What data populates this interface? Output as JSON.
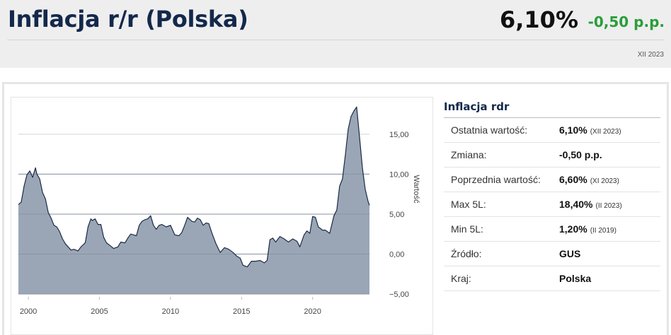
{
  "header": {
    "title": "Inflacja r/r (Polska)",
    "value": "6,10%",
    "change": "-0,50 p.p.",
    "date": "XII 2023"
  },
  "info": {
    "title": "Inflacja rdr",
    "rows": [
      {
        "label": "Ostatnia wartość:",
        "value": "6,10%",
        "sub": "(XII 2023)"
      },
      {
        "label": "Zmiana:",
        "value": "-0,50 p.p.",
        "sub": ""
      },
      {
        "label": "Poprzednia wartość:",
        "value": "6,60%",
        "sub": "(XI 2023)"
      },
      {
        "label": "Max 5L:",
        "value": "18,40%",
        "sub": "(II 2023)"
      },
      {
        "label": "Min 5L:",
        "value": "1,20%",
        "sub": "(II 2019)"
      },
      {
        "label": "Źródło:",
        "value": "GUS",
        "sub": ""
      },
      {
        "label": "Kraj:",
        "value": "Polska",
        "sub": ""
      }
    ]
  },
  "colors": {
    "area_fill": "#9aa6b6",
    "line": "#1b2a45",
    "positive_change": "#2a9d3a",
    "title": "#13284b"
  },
  "chart_data": {
    "type": "area",
    "ylabel": "Wartość",
    "xlim": [
      1999.3,
      2024.0
    ],
    "ylim": [
      -5,
      19.5
    ],
    "grid": true,
    "y_ticks": [
      15,
      10,
      5,
      0,
      -5
    ],
    "y_tick_labels": [
      "15,00",
      "10,00",
      "5,00",
      "0,00",
      "−5,00"
    ],
    "x_ticks": [
      2000,
      2005,
      2010,
      2015,
      2020
    ],
    "x_tick_labels": [
      "2000",
      "2005",
      "2010",
      "2015",
      "2020"
    ],
    "series": [
      {
        "x": [
          1999.3,
          1999.5,
          1999.7,
          1999.9,
          2000.1,
          2000.3,
          2000.5,
          2000.6,
          2000.8,
          2001.0,
          2001.2,
          2001.4,
          2001.6,
          2001.8,
          2002.0,
          2002.2,
          2002.4,
          2002.6,
          2002.8,
          2003.0,
          2003.2,
          2003.5,
          2003.7,
          2004.0,
          2004.2,
          2004.4,
          2004.5,
          2004.7,
          2004.9,
          2005.1,
          2005.3,
          2005.5,
          2005.8,
          2006.0,
          2006.3,
          2006.5,
          2006.8,
          2007.0,
          2007.2,
          2007.4,
          2007.6,
          2007.8,
          2008.0,
          2008.2,
          2008.4,
          2008.6,
          2008.8,
          2009.0,
          2009.2,
          2009.4,
          2009.7,
          2010.0,
          2010.3,
          2010.6,
          2010.8,
          2011.0,
          2011.2,
          2011.5,
          2011.7,
          2011.9,
          2012.1,
          2012.3,
          2012.5,
          2012.7,
          2012.9,
          2013.2,
          2013.5,
          2013.8,
          2014.1,
          2014.4,
          2014.7,
          2014.9,
          2015.1,
          2015.4,
          2015.7,
          2016.0,
          2016.3,
          2016.6,
          2016.8,
          2017.0,
          2017.2,
          2017.4,
          2017.7,
          2018.0,
          2018.3,
          2018.6,
          2018.9,
          2019.1,
          2019.4,
          2019.6,
          2019.8,
          2020.0,
          2020.2,
          2020.4,
          2020.7,
          2020.9,
          2021.2,
          2021.5,
          2021.7,
          2021.9,
          2022.1,
          2022.3,
          2022.5,
          2022.7,
          2022.9,
          2023.1,
          2023.3,
          2023.5,
          2023.7,
          2023.9,
          2024.0
        ],
        "y": [
          6.2,
          6.5,
          8.5,
          9.9,
          10.4,
          9.6,
          10.8,
          10.0,
          9.4,
          7.7,
          6.9,
          5.2,
          4.5,
          3.6,
          3.4,
          2.8,
          1.9,
          1.3,
          0.9,
          0.5,
          0.6,
          0.4,
          0.9,
          1.4,
          3.4,
          4.4,
          4.2,
          4.4,
          3.7,
          3.7,
          2.1,
          1.4,
          1.0,
          0.7,
          0.9,
          1.5,
          1.4,
          2.0,
          2.5,
          2.4,
          2.3,
          3.6,
          4.1,
          4.3,
          4.4,
          4.8,
          3.6,
          3.1,
          3.6,
          3.7,
          3.4,
          3.6,
          2.4,
          2.3,
          2.7,
          3.6,
          4.6,
          4.1,
          4.0,
          4.5,
          4.3,
          3.6,
          3.9,
          3.8,
          2.7,
          1.3,
          0.2,
          0.8,
          0.6,
          0.2,
          -0.3,
          -0.5,
          -1.4,
          -1.6,
          -0.9,
          -0.9,
          -0.8,
          -1.1,
          -0.8,
          1.8,
          2.0,
          1.5,
          2.2,
          1.9,
          1.5,
          1.9,
          1.6,
          0.9,
          2.4,
          2.9,
          2.6,
          4.7,
          4.6,
          3.4,
          3.0,
          3.0,
          2.6,
          4.8,
          5.5,
          8.5,
          9.4,
          12.4,
          15.6,
          17.2,
          17.9,
          18.4,
          14.7,
          10.8,
          8.1,
          6.6,
          6.1
        ]
      }
    ]
  }
}
